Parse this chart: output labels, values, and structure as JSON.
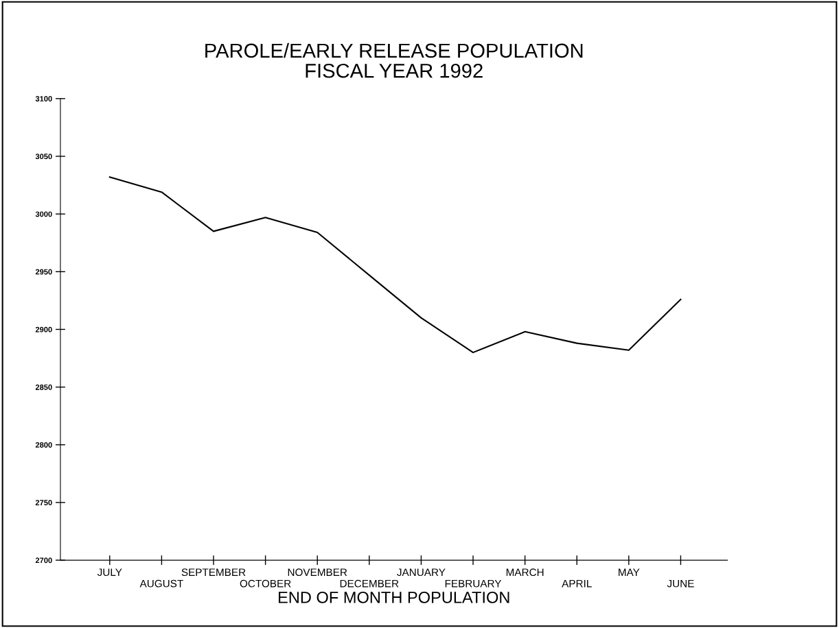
{
  "chart_data": {
    "type": "line",
    "title": "PAROLE/EARLY RELEASE POPULATION\nFISCAL YEAR 1992",
    "xlabel": "END OF MONTH POPULATION",
    "categories": [
      "JULY",
      "AUGUST",
      "SEPTEMBER",
      "OCTOBER",
      "NOVEMBER",
      "DECEMBER",
      "JANUARY",
      "FEBRUARY",
      "MARCH",
      "APRIL",
      "MAY",
      "JUNE"
    ],
    "series": [
      {
        "color": "#000000",
        "values": [
          3032,
          3019,
          2985,
          2997,
          2984,
          2947,
          2910,
          2880,
          2898,
          2888,
          2882,
          2926
        ]
      }
    ],
    "ylim": [
      2700,
      3100
    ],
    "yticks": [
      2700,
      2750,
      2800,
      2850,
      2900,
      2950,
      3000,
      3050,
      3100
    ],
    "grid": false,
    "legend": false,
    "marker": "none",
    "line_style": "solid"
  }
}
